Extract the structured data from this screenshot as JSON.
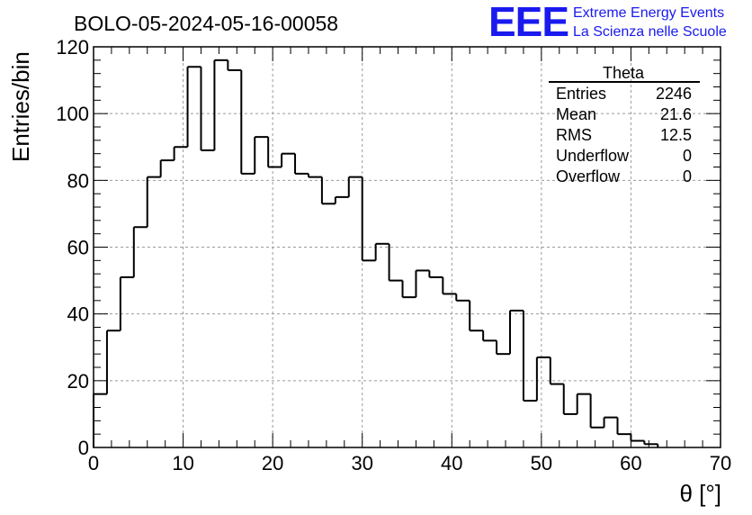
{
  "title": "BOLO-05-2024-05-16-00058",
  "logo": {
    "mark": "EEE",
    "line1": "Extreme Energy Events",
    "line2": "La Scienza nelle Scuole",
    "color": "#1a1aee"
  },
  "stats": {
    "name": "Theta",
    "rows": [
      {
        "label": "Entries",
        "value": "2246"
      },
      {
        "label": "Mean",
        "value": "21.6"
      },
      {
        "label": "RMS",
        "value": "12.5"
      },
      {
        "label": "Underflow",
        "value": "0"
      },
      {
        "label": "Overflow",
        "value": "0"
      }
    ]
  },
  "chart_data": {
    "type": "histogram",
    "title": "BOLO-05-2024-05-16-00058",
    "xlabel": "θ [°]",
    "ylabel": "Entries/bin",
    "xlim": [
      0,
      70
    ],
    "ylim": [
      0,
      120
    ],
    "x_ticks": [
      0,
      10,
      20,
      30,
      40,
      50,
      60,
      70
    ],
    "y_ticks": [
      0,
      20,
      40,
      60,
      80,
      100,
      120
    ],
    "grid": true,
    "bin_width": 1.5,
    "bin_start": 0,
    "values": [
      16,
      35,
      51,
      66,
      81,
      86,
      90,
      114,
      89,
      116,
      113,
      82,
      93,
      84,
      88,
      82,
      81,
      73,
      75,
      81,
      56,
      61,
      50,
      45,
      53,
      51,
      46,
      44,
      35,
      32,
      28,
      41,
      14,
      27,
      19,
      10,
      16,
      6,
      9,
      4,
      2,
      1,
      0,
      0,
      0,
      0,
      0
    ]
  }
}
